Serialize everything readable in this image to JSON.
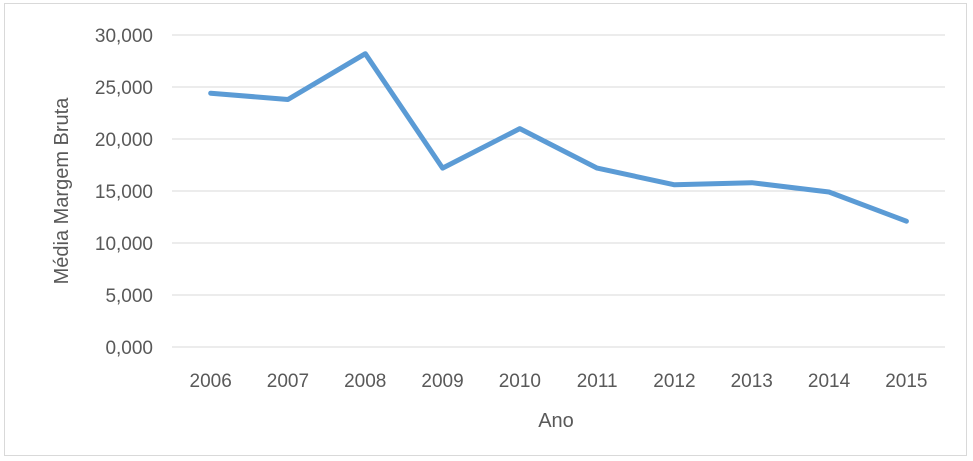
{
  "chart_data": {
    "type": "line",
    "title": "",
    "xlabel": "Ano",
    "ylabel": "Média Margem Bruta",
    "categories": [
      "2006",
      "2007",
      "2008",
      "2009",
      "2010",
      "2011",
      "2012",
      "2013",
      "2014",
      "2015"
    ],
    "series": [
      {
        "values": [
          24.4,
          23.8,
          28.2,
          17.2,
          21.0,
          17.2,
          15.6,
          15.8,
          14.9,
          12.1
        ],
        "color": "#5b9bd5"
      }
    ],
    "ylim": [
      0,
      30
    ],
    "yticks": [
      0,
      5,
      10,
      15,
      20,
      25,
      30
    ],
    "ytick_labels": [
      "0,000",
      "5,000",
      "10,000",
      "15,000",
      "20,000",
      "25,000",
      "30,000"
    ],
    "grid": "horizontal",
    "gridline_color": "#d9d9d9",
    "legend": "none"
  }
}
